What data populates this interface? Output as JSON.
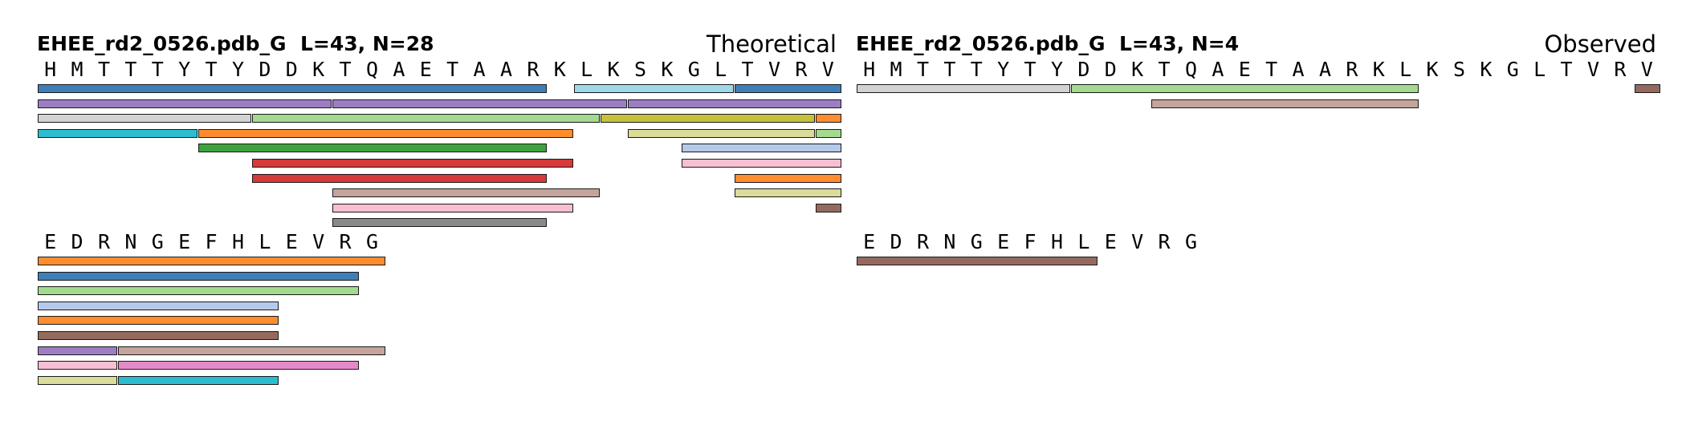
{
  "panels": [
    {
      "id": "theoretical",
      "title": "EHEE_rd2_0526.pdb_G  L=43, N=28",
      "label": "Theoretical",
      "rows": [
        {
          "residues": [
            "H",
            "M",
            "T",
            "T",
            "T",
            "Y",
            "T",
            "Y",
            "D",
            "D",
            "K",
            "T",
            "Q",
            "A",
            "E",
            "T",
            "A",
            "A",
            "R",
            "K",
            "L",
            "K",
            "S",
            "K",
            "G",
            "L",
            "T",
            "V",
            "R",
            "V"
          ],
          "peptides": [
            {
              "start": 1,
              "end": 19,
              "track": 0,
              "color": "#3f7fb8"
            },
            {
              "start": 21,
              "end": 26,
              "track": 0,
              "color": "#9fd8e6"
            },
            {
              "start": 27,
              "end": 30,
              "track": 0,
              "color": "#3f7fb8"
            },
            {
              "start": 1,
              "end": 11,
              "track": 1,
              "color": "#9d7ec4"
            },
            {
              "start": 12,
              "end": 22,
              "track": 1,
              "color": "#9d7ec4"
            },
            {
              "start": 23,
              "end": 30,
              "track": 1,
              "color": "#9d7ec4"
            },
            {
              "start": 1,
              "end": 8,
              "track": 2,
              "color": "#d2d2d2"
            },
            {
              "start": 9,
              "end": 21,
              "track": 2,
              "color": "#a4da8f"
            },
            {
              "start": 22,
              "end": 29,
              "track": 2,
              "color": "#c6c13a"
            },
            {
              "start": 30,
              "end": 30,
              "track": 2,
              "color": "#ff8c2e"
            },
            {
              "start": 1,
              "end": 6,
              "track": 3,
              "color": "#2cbdd0"
            },
            {
              "start": 7,
              "end": 20,
              "track": 3,
              "color": "#ff8c2e"
            },
            {
              "start": 23,
              "end": 29,
              "track": 3,
              "color": "#dbdb9a"
            },
            {
              "start": 30,
              "end": 30,
              "track": 3,
              "color": "#a4da8f"
            },
            {
              "start": 7,
              "end": 19,
              "track": 4,
              "color": "#3ea33e"
            },
            {
              "start": 25,
              "end": 30,
              "track": 4,
              "color": "#b5c9ea"
            },
            {
              "start": 9,
              "end": 20,
              "track": 5,
              "color": "#d63a3a"
            },
            {
              "start": 25,
              "end": 30,
              "track": 5,
              "color": "#f8bfd2"
            },
            {
              "start": 9,
              "end": 19,
              "track": 6,
              "color": "#d63a3a"
            },
            {
              "start": 27,
              "end": 30,
              "track": 6,
              "color": "#ff8c2e"
            },
            {
              "start": 12,
              "end": 21,
              "track": 7,
              "color": "#c4a49b"
            },
            {
              "start": 27,
              "end": 30,
              "track": 7,
              "color": "#dbdb9a"
            },
            {
              "start": 12,
              "end": 20,
              "track": 8,
              "color": "#f8bfd2"
            },
            {
              "start": 30,
              "end": 30,
              "track": 8,
              "color": "#946a5e"
            },
            {
              "start": 12,
              "end": 19,
              "track": 9,
              "color": "#8a8a8a"
            }
          ]
        },
        {
          "residues": [
            "E",
            "D",
            "R",
            "N",
            "G",
            "E",
            "F",
            "H",
            "L",
            "E",
            "V",
            "R",
            "G"
          ],
          "peptides": [
            {
              "start": 1,
              "end": 13,
              "track": 0,
              "color": "#ff8c2e"
            },
            {
              "start": 1,
              "end": 12,
              "track": 1,
              "color": "#3f7fb8"
            },
            {
              "start": 1,
              "end": 12,
              "track": 2,
              "color": "#a4da8f"
            },
            {
              "start": 1,
              "end": 9,
              "track": 3,
              "color": "#b5c9ea"
            },
            {
              "start": 1,
              "end": 9,
              "track": 4,
              "color": "#ff8c2e"
            },
            {
              "start": 1,
              "end": 9,
              "track": 5,
              "color": "#946a5e"
            },
            {
              "start": 1,
              "end": 3,
              "track": 6,
              "color": "#9d7ec4"
            },
            {
              "start": 4,
              "end": 13,
              "track": 6,
              "color": "#c4a49b"
            },
            {
              "start": 1,
              "end": 3,
              "track": 7,
              "color": "#f8bfd2"
            },
            {
              "start": 4,
              "end": 12,
              "track": 7,
              "color": "#e48ac8"
            },
            {
              "start": 1,
              "end": 3,
              "track": 8,
              "color": "#dbdb9a"
            },
            {
              "start": 4,
              "end": 9,
              "track": 8,
              "color": "#2cbdd0"
            }
          ]
        }
      ]
    },
    {
      "id": "observed",
      "title": "EHEE_rd2_0526.pdb_G  L=43, N=4",
      "label": "Observed",
      "rows": [
        {
          "residues": [
            "H",
            "M",
            "T",
            "T",
            "T",
            "Y",
            "T",
            "Y",
            "D",
            "D",
            "K",
            "T",
            "Q",
            "A",
            "E",
            "T",
            "A",
            "A",
            "R",
            "K",
            "L",
            "K",
            "S",
            "K",
            "G",
            "L",
            "T",
            "V",
            "R",
            "V"
          ],
          "peptides": [
            {
              "start": 1,
              "end": 8,
              "track": 0,
              "color": "#d2d2d2"
            },
            {
              "start": 9,
              "end": 21,
              "track": 0,
              "color": "#a4da8f"
            },
            {
              "start": 30,
              "end": 30,
              "track": 0,
              "color": "#946a5e"
            },
            {
              "start": 12,
              "end": 21,
              "track": 1,
              "color": "#c4a49b"
            }
          ]
        },
        {
          "residues": [
            "E",
            "D",
            "R",
            "N",
            "G",
            "E",
            "F",
            "H",
            "L",
            "E",
            "V",
            "R",
            "G"
          ],
          "peptides": [
            {
              "start": 1,
              "end": 9,
              "track": 0,
              "color": "#946a5e"
            }
          ]
        }
      ]
    }
  ]
}
